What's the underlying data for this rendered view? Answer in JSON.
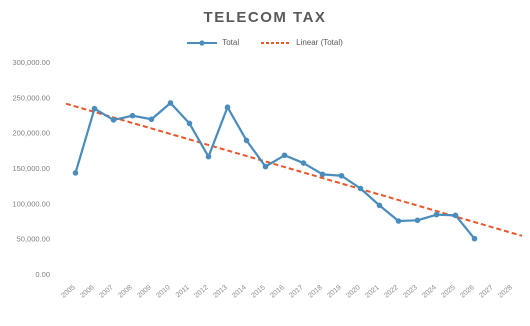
{
  "chart_data": {
    "type": "line",
    "title": "TELECOM TAX",
    "xlabel": "",
    "ylabel": "",
    "x": [
      "2005",
      "2006",
      "2007",
      "2008",
      "2009",
      "2010",
      "2011",
      "2012",
      "2013",
      "2014",
      "2015",
      "2016",
      "2017",
      "2018",
      "2019",
      "2020",
      "2021",
      "2022",
      "2023",
      "2024",
      "2025",
      "2026",
      "2027",
      "2028"
    ],
    "series": [
      {
        "name": "Total",
        "color": "#4a8cbb",
        "marker": "circle",
        "values": [
          143000,
          234000,
          218000,
          224000,
          219000,
          242000,
          213000,
          166000,
          236000,
          189000,
          152000,
          168000,
          157000,
          141000,
          139000,
          121000,
          97000,
          75000,
          76000,
          84000,
          83000,
          50000,
          null,
          null
        ]
      },
      {
        "name": "Linear (Total)",
        "color": "#e8572a",
        "style": "dashed",
        "trendline": true,
        "start": 241000,
        "end": 54000
      }
    ],
    "ylim": [
      0,
      300000
    ],
    "yticks": [
      "0.00",
      "50,000.00",
      "100,000.00",
      "150,000.00",
      "200,000.00",
      "250,000.00",
      "300,000.00"
    ],
    "grid": false,
    "legend_position": "top-center"
  }
}
